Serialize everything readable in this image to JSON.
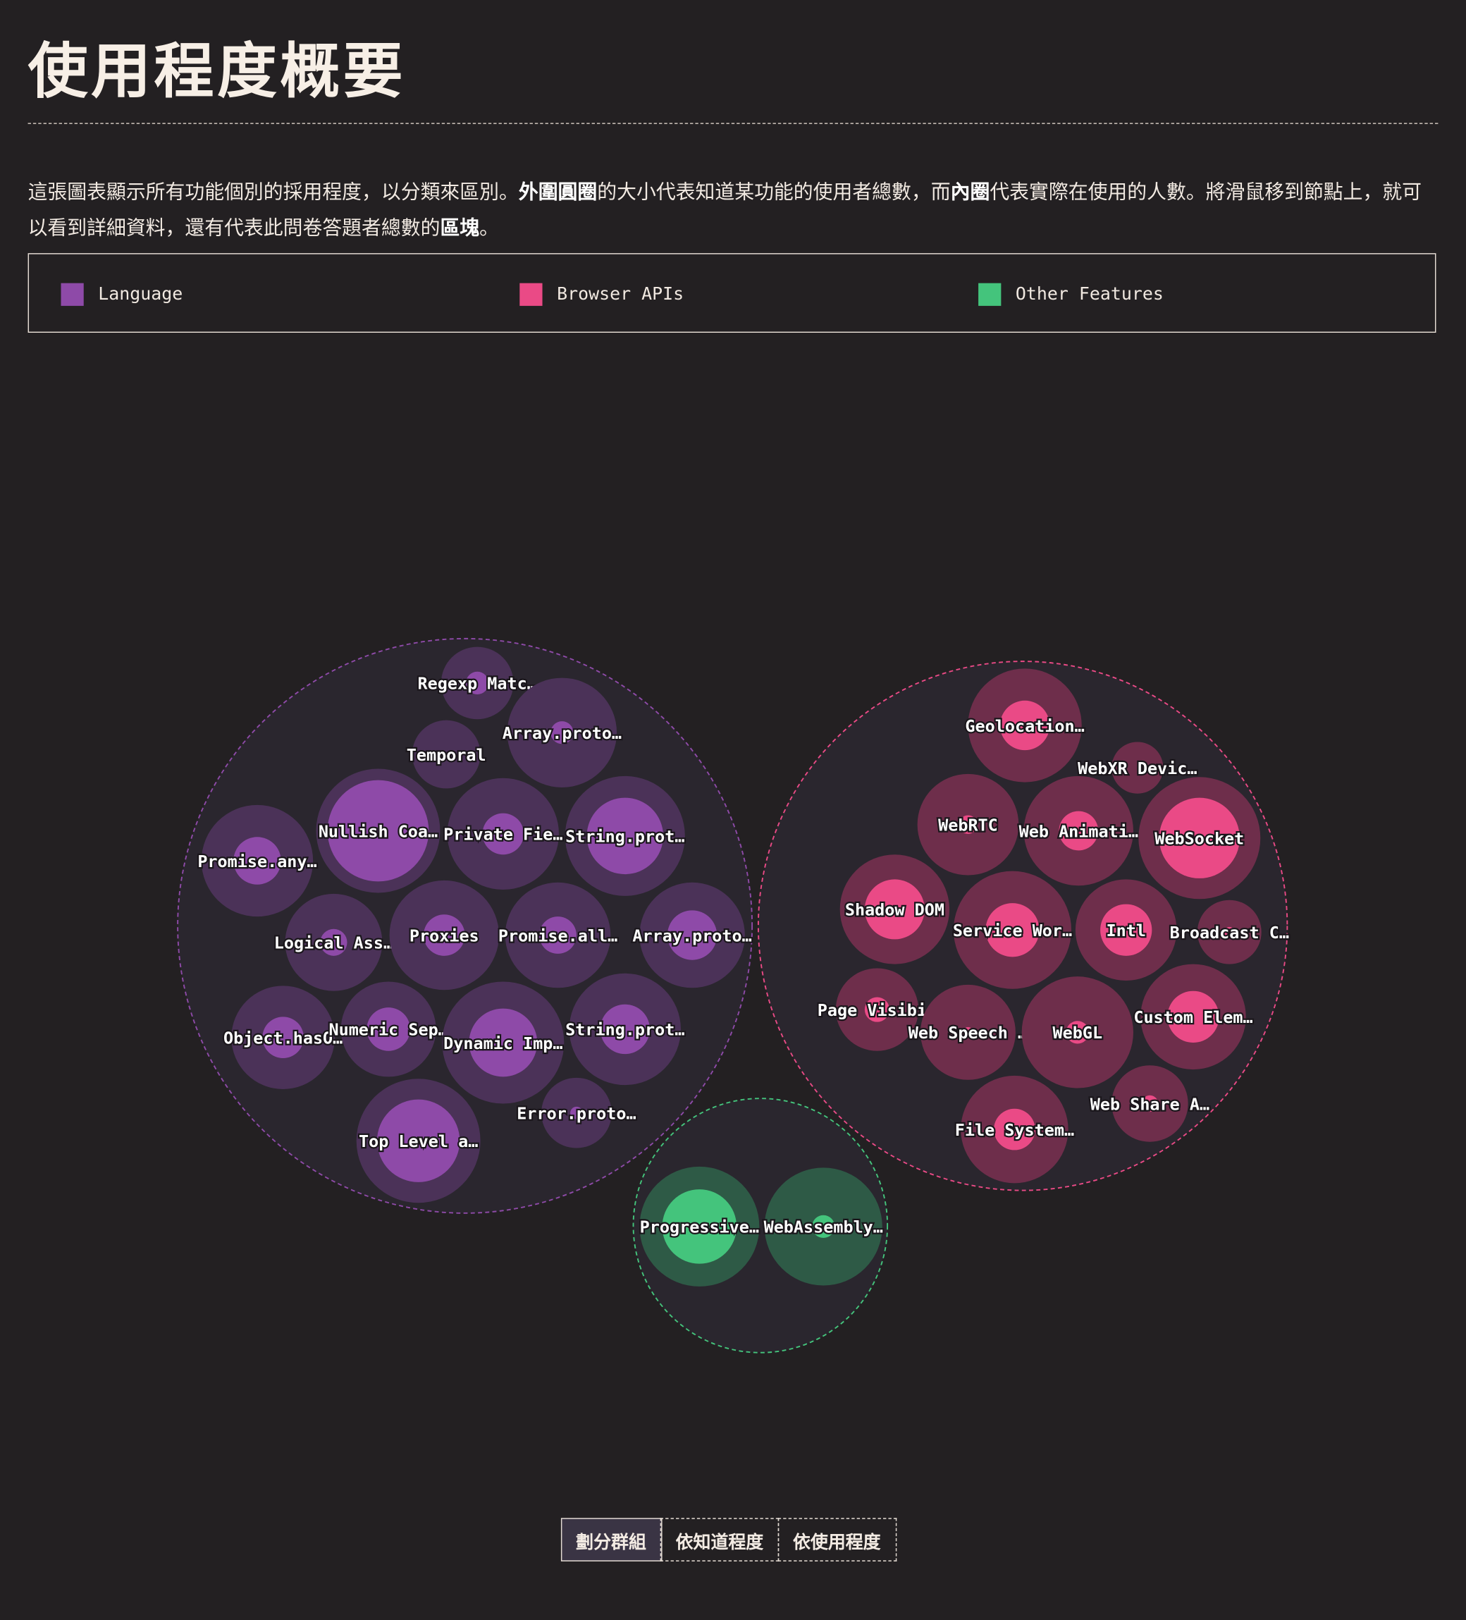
{
  "header": {
    "title": "使用程度概要",
    "desc_parts": [
      {
        "text": "這張圖表顯示所有功能個別的採用程度，以分類來區別。",
        "bold": false
      },
      {
        "text": "外圍圓圈",
        "bold": true
      },
      {
        "text": "的大小代表知道某功能的使用者總數，而",
        "bold": false
      },
      {
        "text": "內圈",
        "bold": true
      },
      {
        "text": "代表實際在使用的人數。將滑鼠移到節點上，就可以看到詳細資料，還有代表此問卷答題者總數的",
        "bold": false
      },
      {
        "text": "區塊",
        "bold": true
      },
      {
        "text": "。",
        "bold": false
      }
    ]
  },
  "legend": [
    {
      "label": "Language",
      "color": "#8e4aa8"
    },
    {
      "label": "Browser APIs",
      "color": "#ea4a86"
    },
    {
      "label": "Other Features",
      "color": "#44c47c"
    }
  ],
  "controls": {
    "buttons": [
      {
        "label": "劃分群組",
        "active": true
      },
      {
        "label": "依知道程度",
        "active": false
      },
      {
        "label": "依使用程度",
        "active": false
      }
    ]
  },
  "chart_data": {
    "type": "bubble",
    "measures": {
      "outer": "知道的使用者總數",
      "inner": "實際使用的人數"
    },
    "groups": [
      {
        "name": "Language",
        "color": "#8e4aa8",
        "outer_color": "#4b3258",
        "border_color": "#8e4aa8",
        "features": [
          {
            "label": "Regexp Matc…",
            "aware": 1225,
            "used": 121
          },
          {
            "label": "Array.proto…",
            "aware": 2809,
            "used": 121
          },
          {
            "label": "Temporal",
            "aware": 1089,
            "used": 0
          },
          {
            "label": "Nullish Coa…",
            "aware": 3600,
            "used": 2401
          },
          {
            "label": "Private Fie…",
            "aware": 2916,
            "used": 400
          },
          {
            "label": "String.prot…",
            "aware": 3364,
            "used": 1369
          },
          {
            "label": "Promise.any…",
            "aware": 2916,
            "used": 529
          },
          {
            "label": "Logical Ass…",
            "aware": 2209,
            "used": 169
          },
          {
            "label": "Proxies",
            "aware": 2809,
            "used": 400
          },
          {
            "label": "Promise.all…",
            "aware": 2601,
            "used": 324
          },
          {
            "label": "Array.proto…",
            "aware": 2601,
            "used": 576
          },
          {
            "label": "Object.hasO…",
            "aware": 2500,
            "used": 400
          },
          {
            "label": "Numeric Sep…",
            "aware": 2116,
            "used": 441
          },
          {
            "label": "Dynamic Imp…",
            "aware": 3481,
            "used": 1089
          },
          {
            "label": "String.prot…",
            "aware": 2916,
            "used": 576
          },
          {
            "label": "Error.proto…",
            "aware": 1156,
            "used": 36
          },
          {
            "label": "Top Level a…",
            "aware": 3600,
            "used": 1600
          }
        ]
      },
      {
        "name": "Browser APIs",
        "color": "#ea4a86",
        "outer_color": "#6e2e4b",
        "border_color": "#ea4a86",
        "features": [
          {
            "label": "Geolocation…",
            "aware": 3025,
            "used": 576
          },
          {
            "label": "WebXR Devic…",
            "aware": 625,
            "used": 0
          },
          {
            "label": "WebRTC",
            "aware": 2401,
            "used": 81
          },
          {
            "label": "Web Animati…",
            "aware": 2809,
            "used": 361
          },
          {
            "label": "WebSocket",
            "aware": 3481,
            "used": 1521
          },
          {
            "label": "Shadow DOM",
            "aware": 2809,
            "used": 841
          },
          {
            "label": "Service Wor…",
            "aware": 3249,
            "used": 676
          },
          {
            "label": "Intl",
            "aware": 2401,
            "used": 625
          },
          {
            "label": "Broadcast C…",
            "aware": 961,
            "used": 25
          },
          {
            "label": "Page Visibi…",
            "aware": 1600,
            "used": 144
          },
          {
            "label": "Web Speech …",
            "aware": 2116,
            "used": 25
          },
          {
            "label": "WebGL",
            "aware": 2916,
            "used": 121
          },
          {
            "label": "Custom Elem…",
            "aware": 2601,
            "used": 625
          },
          {
            "label": "Web Share A…",
            "aware": 1369,
            "used": 64
          },
          {
            "label": "File System…",
            "aware": 2704,
            "used": 400
          }
        ]
      },
      {
        "name": "Other Features",
        "color": "#44c47c",
        "outer_color": "#2e5a46",
        "border_color": "#44c47c",
        "features": [
          {
            "label": "Progressive…",
            "aware": 3364,
            "used": 1296
          },
          {
            "label": "WebAssembly…",
            "aware": 3249,
            "used": 121
          }
        ]
      }
    ]
  }
}
